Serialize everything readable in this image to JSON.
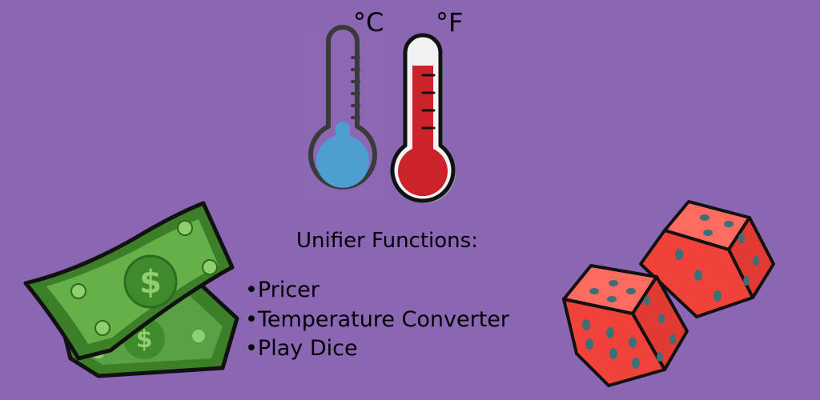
{
  "thermometers": {
    "celsius_label": "°C",
    "fahrenheit_label": "°F"
  },
  "heading": "Unifier Functions:",
  "features": [
    "•Pricer",
    "•Temperature Converter",
    "•Play Dice"
  ],
  "colors": {
    "background": "#8a66b3",
    "cold_fill": "#4d9fd1",
    "hot_fill": "#cc2229",
    "money_green": "#5aa145",
    "money_dark": "#2f6b1f",
    "dice_red": "#f0423a",
    "dice_pip": "#3d6f77"
  },
  "icons": {
    "left": "money-icon",
    "top": "thermometer-icon",
    "right": "dice-icon"
  }
}
